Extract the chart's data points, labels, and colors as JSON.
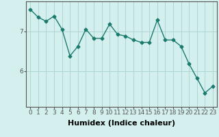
{
  "x": [
    0,
    1,
    2,
    3,
    4,
    5,
    6,
    7,
    8,
    9,
    10,
    11,
    12,
    13,
    14,
    15,
    16,
    17,
    18,
    19,
    20,
    21,
    22,
    23
  ],
  "y": [
    7.55,
    7.35,
    7.25,
    7.38,
    7.05,
    6.38,
    6.62,
    7.05,
    6.82,
    6.82,
    7.18,
    6.92,
    6.88,
    6.78,
    6.72,
    6.72,
    7.28,
    6.78,
    6.78,
    6.62,
    6.18,
    5.82,
    5.45,
    5.62
  ],
  "line_color": "#1a7a6e",
  "marker": "D",
  "marker_size": 2.5,
  "line_width": 1.0,
  "background_color": "#d4f0ee",
  "grid_color": "#aed6d2",
  "xlabel": "Humidex (Indice chaleur)",
  "xlabel_fontsize": 8,
  "yticks": [
    6,
    7
  ],
  "ylim": [
    5.1,
    7.75
  ],
  "xlim": [
    -0.5,
    23.5
  ],
  "xtick_labels": [
    "0",
    "1",
    "2",
    "3",
    "4",
    "5",
    "6",
    "7",
    "8",
    "9",
    "10",
    "11",
    "12",
    "13",
    "14",
    "15",
    "16",
    "17",
    "18",
    "19",
    "20",
    "21",
    "22",
    "23"
  ],
  "tick_fontsize": 6.5,
  "axis_color": "#555555"
}
